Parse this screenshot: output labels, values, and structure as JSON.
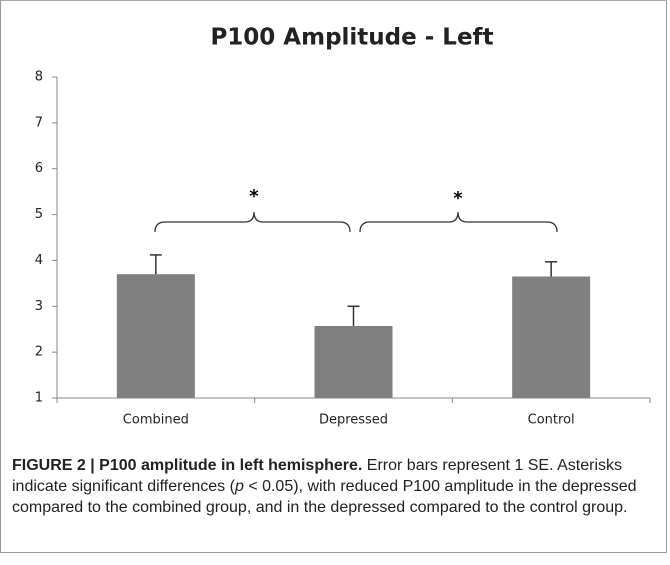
{
  "chart_data": {
    "type": "bar",
    "title": "P100 Amplitude - Left",
    "categories": [
      "Combined",
      "Depressed",
      "Control"
    ],
    "values": [
      3.7,
      2.57,
      3.65
    ],
    "errors": [
      0.42,
      0.43,
      0.32
    ],
    "color": "#808080",
    "ylim": [
      1,
      8
    ],
    "yticks": [
      1,
      2,
      3,
      4,
      5,
      6,
      7,
      8
    ],
    "annotations": [
      "*",
      "*"
    ]
  },
  "caption": {
    "label": "FIGURE 2 | P100 amplitude in left hemisphere.",
    "text_before": " Error bars represent 1 SE. Asterisks indicate significant differences (",
    "p": "p",
    "text_after": " < 0.05), with reduced P100 amplitude in the depressed compared to the combined group, and in the depressed compared to the control group."
  }
}
